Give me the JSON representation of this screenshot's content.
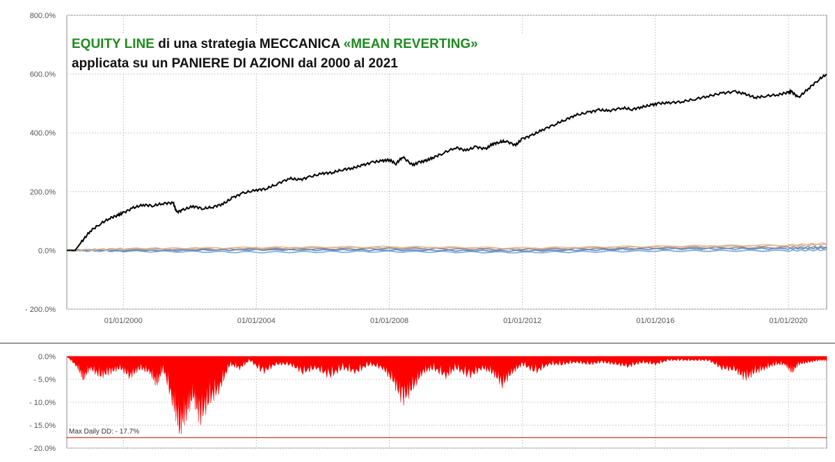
{
  "title": {
    "line1_green_a": "EQUITY LINE",
    "line1_black": " di una strategia MECCANICA ",
    "line1_green_b": "«MEAN REVERTING»",
    "line2": "applicata su un PANIERE DI AZIONI dal 2000 al 2021"
  },
  "drawdown_label": "Max Daily DD: -  17.7%",
  "colors": {
    "equity": "#000000",
    "drawdown": "#ff0000",
    "grid": "#c8c8c8",
    "benchmarks": [
      "#f4b183",
      "#5b9bd5",
      "#7f7f7f",
      "#a5a5a5",
      "#4472c4"
    ]
  },
  "chart_data": [
    {
      "type": "line",
      "name_hint": "equity",
      "y_tick_labels": [
        "800.0%",
        "600.0%",
        "400.0%",
        "200.0%",
        "0.0%",
        "- 200.0%"
      ],
      "y_ticks": [
        800,
        600,
        400,
        200,
        0,
        -200
      ],
      "x_tick_labels": [
        "01/01/2000",
        "01/01/2004",
        "01/01/2008",
        "01/01/2012",
        "01/01/2016",
        "01/01/2020"
      ],
      "x_ticks": [
        2000,
        2004,
        2008,
        2012,
        2016,
        2020
      ],
      "xlim": [
        1998.3,
        2021.15
      ],
      "ylim": [
        -200,
        800
      ],
      "grid": true,
      "series": [
        {
          "x": [
            1998.3,
            1998.55,
            1998.75,
            1999.0,
            1999.3,
            1999.6,
            1999.85,
            2000.0,
            2000.3,
            2000.6,
            2000.9,
            2001.2,
            2001.5,
            2001.6,
            2001.8,
            2002.1,
            2002.4,
            2002.7,
            2003.0,
            2003.3,
            2003.6,
            2004.0,
            2004.3,
            2004.6,
            2005.0,
            2005.3,
            2005.6,
            2006.0,
            2006.3,
            2006.6,
            2006.9,
            2007.2,
            2007.5,
            2007.8,
            2008.0,
            2008.2,
            2008.4,
            2008.7,
            2008.9,
            2009.1,
            2009.3,
            2009.6,
            2010.0,
            2010.3,
            2010.6,
            2010.9,
            2011.1,
            2011.3,
            2011.5,
            2011.8,
            2012.0,
            2012.3,
            2012.6,
            2013.0,
            2013.3,
            2013.6,
            2014.0,
            2014.3,
            2014.6,
            2015.0,
            2015.3,
            2015.6,
            2015.9,
            2016.1,
            2016.4,
            2016.8,
            2017.2,
            2017.6,
            2018.0,
            2018.4,
            2018.7,
            2019.0,
            2019.3,
            2019.7,
            2020.0,
            2020.1,
            2020.3,
            2020.6,
            2020.9,
            2021.15
          ],
          "y": [
            0,
            0,
            30,
            65,
            90,
            110,
            120,
            128,
            145,
            155,
            152,
            160,
            162,
            130,
            138,
            150,
            142,
            148,
            158,
            180,
            195,
            205,
            210,
            225,
            245,
            240,
            250,
            262,
            265,
            275,
            280,
            290,
            300,
            305,
            308,
            295,
            318,
            290,
            300,
            305,
            315,
            330,
            350,
            340,
            352,
            345,
            362,
            368,
            372,
            358,
            380,
            392,
            410,
            430,
            445,
            460,
            470,
            478,
            475,
            485,
            480,
            488,
            495,
            500,
            502,
            506,
            515,
            525,
            535,
            540,
            532,
            520,
            525,
            530,
            538,
            540,
            520,
            550,
            580,
            600
          ]
        },
        {
          "x": [
            1998.3,
            2000,
            2004,
            2008,
            2012,
            2016,
            2020,
            2021.15
          ],
          "y": [
            0,
            4,
            10,
            12,
            8,
            14,
            18,
            24
          ]
        },
        {
          "x": [
            1998.3,
            2000,
            2004,
            2008,
            2012,
            2016,
            2020,
            2021.15
          ],
          "y": [
            0,
            -3,
            -6,
            -4,
            -7,
            -2,
            -1,
            2
          ]
        },
        {
          "x": [
            1998.3,
            2000,
            2004,
            2008,
            2012,
            2016,
            2020,
            2021.15
          ],
          "y": [
            0,
            2,
            4,
            6,
            3,
            8,
            10,
            12
          ]
        },
        {
          "x": [
            1998.3,
            2000,
            2004,
            2008,
            2012,
            2016,
            2020,
            2021.15
          ],
          "y": [
            0,
            6,
            8,
            10,
            6,
            12,
            16,
            20
          ]
        },
        {
          "x": [
            1998.3,
            2000,
            2004,
            2008,
            2012,
            2016,
            2020,
            2021.15
          ],
          "y": [
            0,
            -1,
            2,
            1,
            -2,
            5,
            6,
            8
          ]
        }
      ]
    },
    {
      "type": "area",
      "name_hint": "drawdown",
      "y_tick_labels": [
        "0.0%",
        "- 5.0%",
        "- 10.0%",
        "- 15.0%",
        "- 20.0%"
      ],
      "y_ticks": [
        0,
        -5,
        -10,
        -15,
        -20
      ],
      "xlim": [
        1998.3,
        2021.15
      ],
      "ylim": [
        -20,
        0
      ],
      "max_drawdown": -17.7,
      "grid": true,
      "series": [
        {
          "x": [
            1998.3,
            1998.6,
            1998.8,
            1999.0,
            1999.3,
            1999.6,
            1999.9,
            2000.2,
            2000.5,
            2000.8,
            2001.0,
            2001.2,
            2001.5,
            2001.7,
            2001.9,
            2002.1,
            2002.3,
            2002.6,
            2002.9,
            2003.2,
            2003.5,
            2003.8,
            2004.2,
            2004.6,
            2005.0,
            2005.4,
            2005.8,
            2006.2,
            2006.6,
            2007.0,
            2007.4,
            2007.8,
            2008.1,
            2008.4,
            2008.7,
            2009.0,
            2009.3,
            2009.7,
            2010.0,
            2010.4,
            2010.8,
            2011.1,
            2011.4,
            2011.7,
            2012.0,
            2012.4,
            2012.8,
            2013.2,
            2013.6,
            2014.0,
            2014.4,
            2014.8,
            2015.2,
            2015.6,
            2016.0,
            2016.4,
            2016.8,
            2017.2,
            2017.6,
            2018.0,
            2018.4,
            2018.7,
            2019.0,
            2019.3,
            2019.6,
            2019.9,
            2020.1,
            2020.3,
            2020.6,
            2020.9,
            2021.15
          ],
          "y": [
            0,
            -2.5,
            -5.5,
            -3,
            -5,
            -4,
            -3,
            -5,
            -3,
            -4,
            -7,
            -3,
            -12,
            -17.7,
            -14,
            -10,
            -15.5,
            -11,
            -8,
            -2,
            -3,
            -1,
            -4,
            -2,
            -2,
            -4,
            -3,
            -5,
            -3,
            -4,
            -2,
            -3,
            -6,
            -11,
            -8,
            -4,
            -3,
            -5,
            -3,
            -5,
            -3,
            -4,
            -7,
            -4,
            -2,
            -4,
            -2,
            -2,
            -1.5,
            -2,
            -1.5,
            -2,
            -2.5,
            -1.5,
            -2,
            -1,
            -1,
            -1,
            -1,
            -3,
            -3.5,
            -5.5,
            -4,
            -3,
            -2,
            -2,
            -4,
            -2,
            -1.5,
            -1,
            -1
          ]
        }
      ]
    }
  ]
}
